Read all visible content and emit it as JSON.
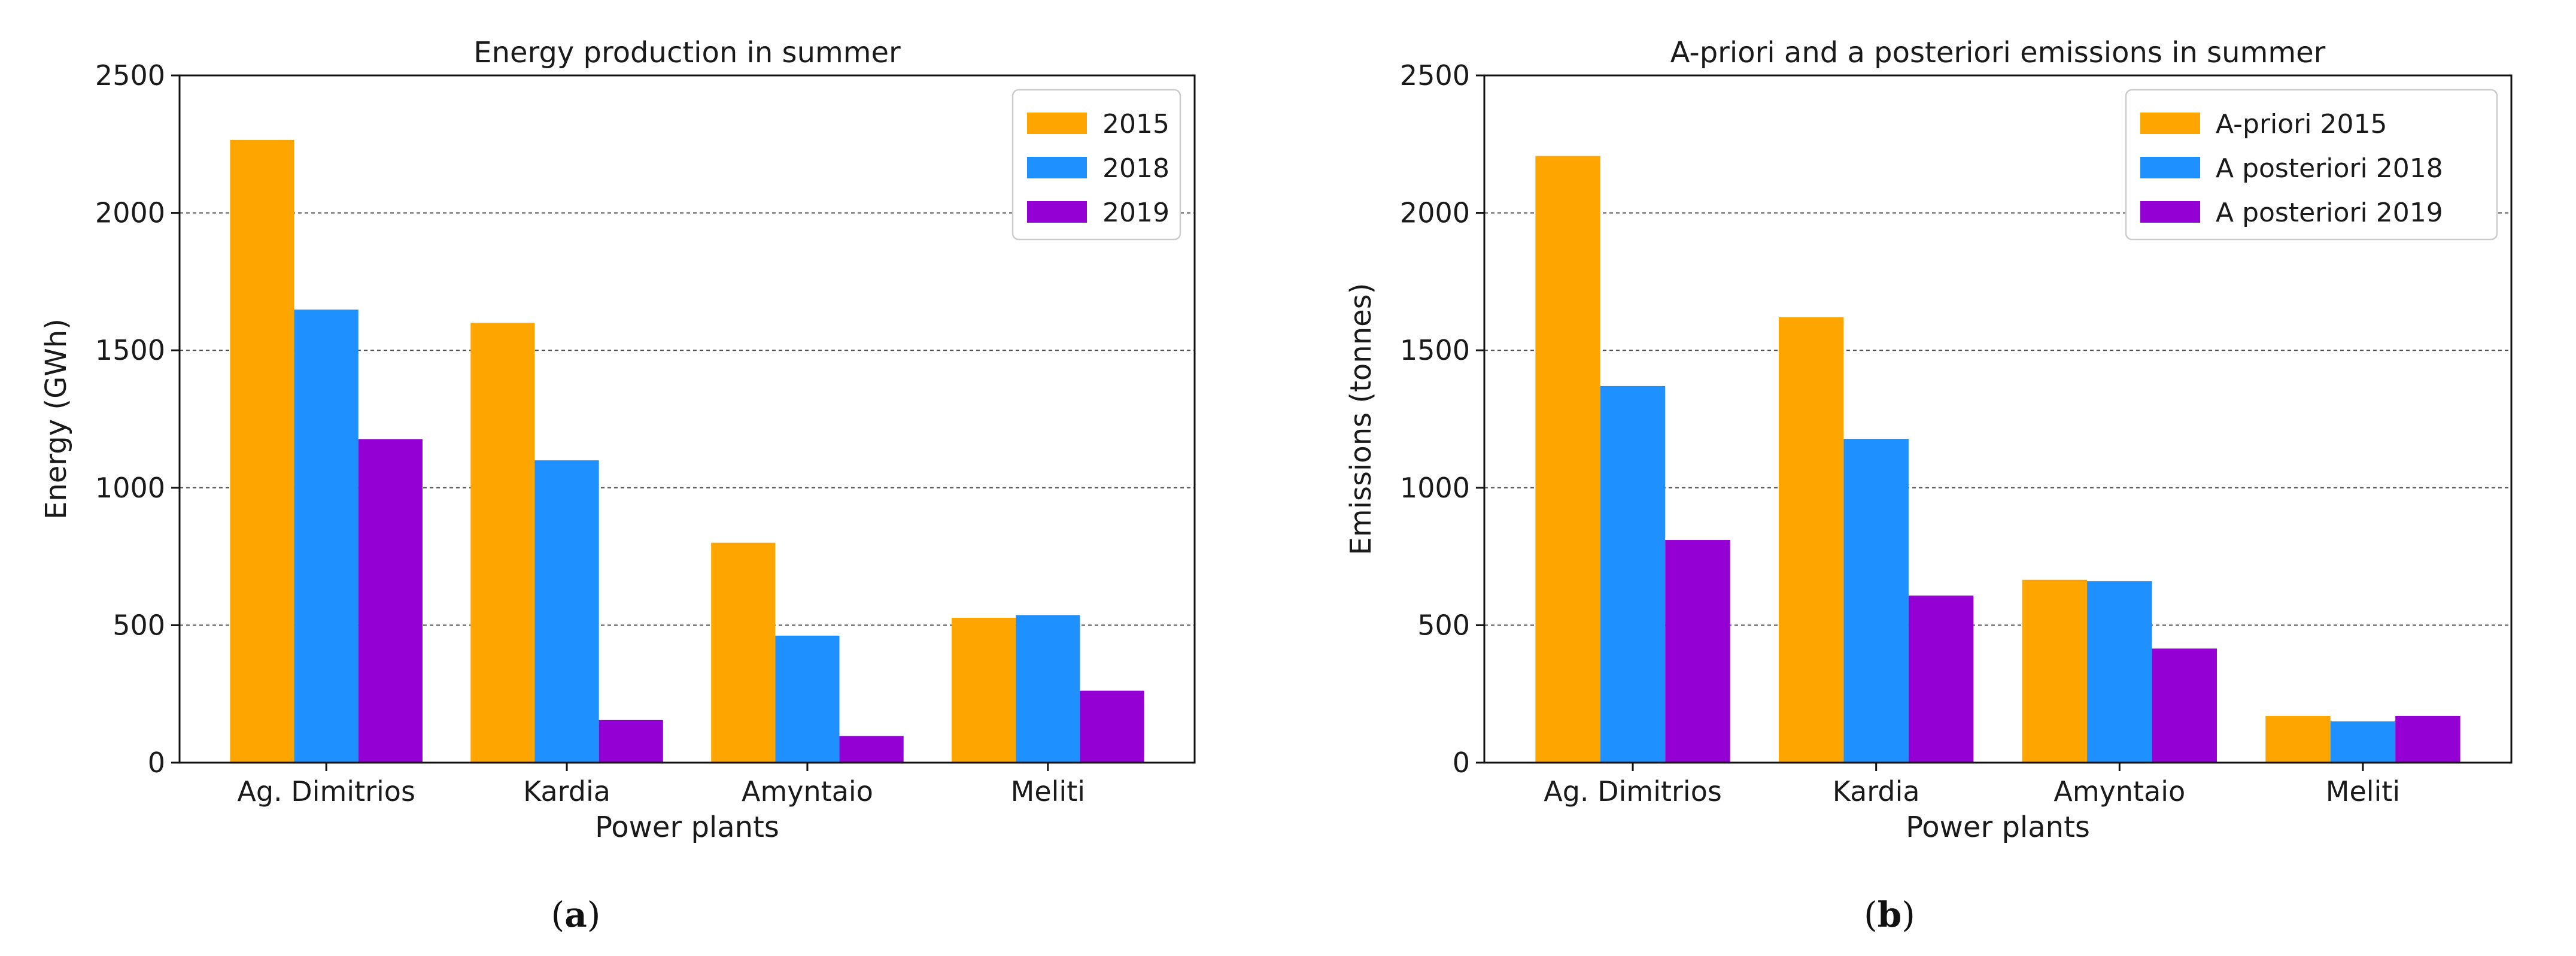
{
  "chart_data": [
    {
      "id": "a",
      "type": "bar",
      "title": "Energy production in summer",
      "xlabel": "Power plants",
      "ylabel": "Energy (GWh)",
      "ylim": [
        0,
        2500
      ],
      "yticks": [
        0,
        500,
        1000,
        1500,
        2000,
        2500
      ],
      "grid": "y-dashed",
      "legend_position": "top-right",
      "categories": [
        "Ag. Dimitrios",
        "Kardia",
        "Amyntaio",
        "Meliti"
      ],
      "series": [
        {
          "name": "2015",
          "color": "#FFA500",
          "values": [
            2265,
            1600,
            800,
            527
          ]
        },
        {
          "name": "2018",
          "color": "#1E90FF",
          "values": [
            1648,
            1100,
            462,
            537
          ]
        },
        {
          "name": "2019",
          "color": "#9400D3",
          "values": [
            1177,
            155,
            97,
            262
          ]
        }
      ],
      "panel_label": {
        "open": "(",
        "letter": "a",
        "close": ")"
      }
    },
    {
      "id": "b",
      "type": "bar",
      "title": "A-priori and a posteriori emissions in summer",
      "xlabel": "Power plants",
      "ylabel": "Emissions (tonnes)",
      "ylim": [
        0,
        2500
      ],
      "yticks": [
        0,
        500,
        1000,
        1500,
        2000,
        2500
      ],
      "grid": "y-dashed",
      "legend_position": "top-right",
      "categories": [
        "Ag. Dimitrios",
        "Kardia",
        "Amyntaio",
        "Meliti"
      ],
      "series": [
        {
          "name": "A-priori 2015",
          "color": "#FFA500",
          "values": [
            2207,
            1620,
            665,
            170
          ]
        },
        {
          "name": "A posteriori 2018",
          "color": "#1E90FF",
          "values": [
            1370,
            1178,
            660,
            150
          ]
        },
        {
          "name": "A posteriori 2019",
          "color": "#9400D3",
          "values": [
            810,
            608,
            415,
            170
          ]
        }
      ],
      "panel_label": {
        "open": "(",
        "letter": "b",
        "close": ")"
      }
    }
  ]
}
